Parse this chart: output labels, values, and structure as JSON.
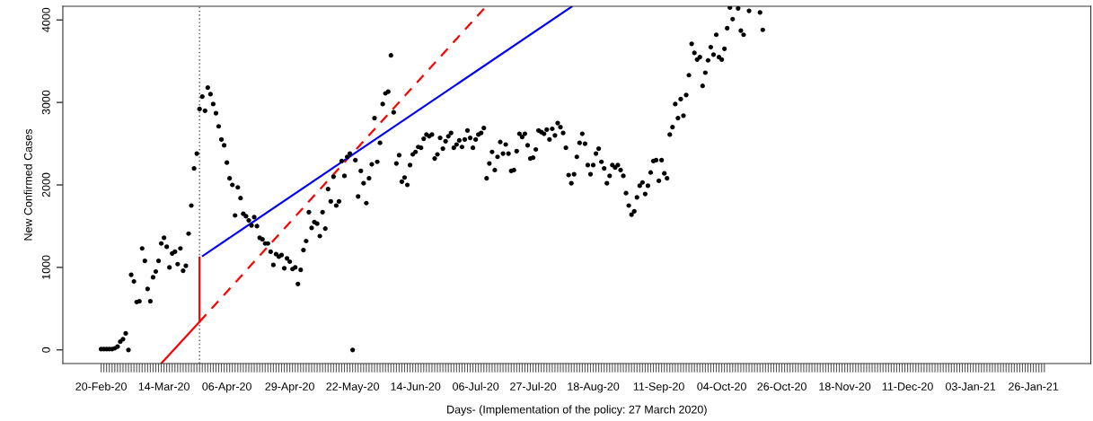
{
  "chart_data": {
    "type": "scatter",
    "xlabel": "Days- (Implementation of the policy: 27 March 2020)",
    "ylabel": "New Confirmed Cases",
    "xlim": [
      "2020-02-06",
      "2021-02-16"
    ],
    "ylim": [
      -165,
      4165
    ],
    "yticks": [
      0,
      1000,
      2000,
      3000,
      4000
    ],
    "xticks": [
      {
        "value": "2020-02-20",
        "label": "20-Feb-20"
      },
      {
        "value": "2020-02-21",
        "label": null
      },
      {
        "value": "2020-02-22",
        "label": null
      },
      {
        "value": "2020-02-23",
        "label": null
      },
      {
        "value": "2020-02-24",
        "label": null
      },
      {
        "value": "2020-02-25",
        "label": null
      },
      {
        "value": "2020-02-26",
        "label": null
      },
      {
        "value": "2020-02-27",
        "label": null
      },
      {
        "value": "2020-02-28",
        "label": null
      },
      {
        "value": "2020-02-29",
        "label": null
      },
      {
        "value": "2020-03-01",
        "label": null
      },
      {
        "value": "2020-03-02",
        "label": null
      },
      {
        "value": "2020-03-03",
        "label": null
      },
      {
        "value": "2020-03-04",
        "label": null
      },
      {
        "value": "2020-03-05",
        "label": null
      },
      {
        "value": "2020-03-06",
        "label": null
      },
      {
        "value": "2020-03-07",
        "label": null
      },
      {
        "value": "2020-03-08",
        "label": null
      },
      {
        "value": "2020-03-09",
        "label": null
      },
      {
        "value": "2020-03-10",
        "label": null
      },
      {
        "value": "2020-03-11",
        "label": null
      },
      {
        "value": "2020-03-12",
        "label": null
      },
      {
        "value": "2020-03-13",
        "label": null
      },
      {
        "value": "2020-03-14",
        "label": "14-Mar-20"
      },
      {
        "value": "2020-03-15",
        "label": null
      },
      {
        "value": "2020-03-16",
        "label": null
      },
      {
        "value": "2020-03-17",
        "label": null
      },
      {
        "value": "2020-03-18",
        "label": null
      },
      {
        "value": "2020-03-19",
        "label": null
      },
      {
        "value": "2020-03-20",
        "label": null
      },
      {
        "value": "2020-03-21",
        "label": null
      },
      {
        "value": "2020-03-22",
        "label": null
      },
      {
        "value": "2020-03-23",
        "label": null
      },
      {
        "value": "2020-03-24",
        "label": null
      },
      {
        "value": "2020-03-25",
        "label": null
      },
      {
        "value": "2020-03-26",
        "label": null
      },
      {
        "value": "2020-03-27",
        "label": null
      },
      {
        "value": "2020-03-28",
        "label": null
      },
      {
        "value": "2020-03-29",
        "label": null
      },
      {
        "value": "2020-03-30",
        "label": null
      },
      {
        "value": "2020-03-31",
        "label": null
      },
      {
        "value": "2020-04-01",
        "label": null
      },
      {
        "value": "2020-04-02",
        "label": null
      },
      {
        "value": "2020-04-03",
        "label": null
      },
      {
        "value": "2020-04-04",
        "label": null
      },
      {
        "value": "2020-04-05",
        "label": null
      },
      {
        "value": "2020-04-06",
        "label": "06-Apr-20"
      },
      {
        "value": "2020-04-07",
        "label": null
      },
      {
        "value": "2020-04-08",
        "label": null
      },
      {
        "value": "2020-04-09",
        "label": null
      },
      {
        "value": "2020-04-10",
        "label": null
      },
      {
        "value": "2020-04-11",
        "label": null
      },
      {
        "value": "2020-04-12",
        "label": null
      },
      {
        "value": "2020-04-13",
        "label": null
      },
      {
        "value": "2020-04-14",
        "label": null
      },
      {
        "value": "2020-04-15",
        "label": null
      },
      {
        "value": "2020-04-16",
        "label": null
      },
      {
        "value": "2020-04-17",
        "label": null
      },
      {
        "value": "2020-04-18",
        "label": null
      },
      {
        "value": "2020-04-19",
        "label": null
      },
      {
        "value": "2020-04-20",
        "label": null
      },
      {
        "value": "2020-04-21",
        "label": null
      },
      {
        "value": "2020-04-22",
        "label": null
      },
      {
        "value": "2020-04-23",
        "label": null
      },
      {
        "value": "2020-04-24",
        "label": null
      },
      {
        "value": "2020-04-25",
        "label": null
      },
      {
        "value": "2020-04-26",
        "label": null
      },
      {
        "value": "2020-04-27",
        "label": null
      },
      {
        "value": "2020-04-28",
        "label": null
      },
      {
        "value": "2020-04-29",
        "label": "29-Apr-20"
      },
      {
        "value": "2020-04-30",
        "label": null
      },
      {
        "value": "2020-05-01",
        "label": null
      },
      {
        "value": "2020-05-02",
        "label": null
      },
      {
        "value": "2020-05-03",
        "label": null
      },
      {
        "value": "2020-05-04",
        "label": null
      },
      {
        "value": "2020-05-05",
        "label": null
      },
      {
        "value": "2020-05-06",
        "label": null
      },
      {
        "value": "2020-05-07",
        "label": null
      },
      {
        "value": "2020-05-08",
        "label": null
      },
      {
        "value": "2020-05-09",
        "label": null
      },
      {
        "value": "2020-05-10",
        "label": null
      },
      {
        "value": "2020-05-11",
        "label": null
      },
      {
        "value": "2020-05-12",
        "label": null
      },
      {
        "value": "2020-05-13",
        "label": null
      },
      {
        "value": "2020-05-14",
        "label": null
      },
      {
        "value": "2020-05-15",
        "label": null
      },
      {
        "value": "2020-05-16",
        "label": null
      },
      {
        "value": "2020-05-17",
        "label": null
      },
      {
        "value": "2020-05-18",
        "label": null
      },
      {
        "value": "2020-05-19",
        "label": null
      },
      {
        "value": "2020-05-20",
        "label": null
      },
      {
        "value": "2020-05-21",
        "label": null
      },
      {
        "value": "2020-05-22",
        "label": "22-May-20"
      },
      {
        "value": "2020-05-23",
        "label": null
      },
      {
        "value": "2020-05-24",
        "label": null
      },
      {
        "value": "2020-05-25",
        "label": null
      },
      {
        "value": "2020-05-26",
        "label": null
      },
      {
        "value": "2020-05-27",
        "label": null
      },
      {
        "value": "2020-05-28",
        "label": null
      },
      {
        "value": "2020-05-29",
        "label": null
      },
      {
        "value": "2020-05-30",
        "label": null
      },
      {
        "value": "2020-05-31",
        "label": null
      },
      {
        "value": "2020-06-01",
        "label": null
      },
      {
        "value": "2020-06-02",
        "label": null
      },
      {
        "value": "2020-06-03",
        "label": null
      },
      {
        "value": "2020-06-04",
        "label": null
      },
      {
        "value": "2020-06-05",
        "label": null
      },
      {
        "value": "2020-06-06",
        "label": null
      },
      {
        "value": "2020-06-07",
        "label": null
      },
      {
        "value": "2020-06-08",
        "label": null
      },
      {
        "value": "2020-06-09",
        "label": null
      },
      {
        "value": "2020-06-10",
        "label": null
      },
      {
        "value": "2020-06-11",
        "label": null
      },
      {
        "value": "2020-06-12",
        "label": null
      },
      {
        "value": "2020-06-13",
        "label": null
      },
      {
        "value": "2020-06-14",
        "label": "14-Jun-20"
      },
      {
        "value": "2020-06-15",
        "label": null
      },
      {
        "value": "2020-06-16",
        "label": null
      },
      {
        "value": "2020-06-17",
        "label": null
      },
      {
        "value": "2020-06-18",
        "label": null
      },
      {
        "value": "2020-06-19",
        "label": null
      },
      {
        "value": "2020-06-20",
        "label": null
      },
      {
        "value": "2020-06-21",
        "label": null
      },
      {
        "value": "2020-06-22",
        "label": null
      },
      {
        "value": "2020-06-23",
        "label": null
      },
      {
        "value": "2020-06-24",
        "label": null
      },
      {
        "value": "2020-06-25",
        "label": null
      },
      {
        "value": "2020-06-26",
        "label": null
      },
      {
        "value": "2020-06-27",
        "label": null
      },
      {
        "value": "2020-06-28",
        "label": null
      },
      {
        "value": "2020-06-29",
        "label": null
      },
      {
        "value": "2020-06-30",
        "label": null
      },
      {
        "value": "2020-07-01",
        "label": null
      },
      {
        "value": "2020-07-02",
        "label": null
      },
      {
        "value": "2020-07-03",
        "label": null
      },
      {
        "value": "2020-07-04",
        "label": null
      },
      {
        "value": "2020-07-05",
        "label": null
      },
      {
        "value": "2020-07-06",
        "label": "06-Jul-20"
      },
      {
        "value": "2020-07-07",
        "label": null
      },
      {
        "value": "2020-07-08",
        "label": null
      },
      {
        "value": "2020-07-09",
        "label": null
      },
      {
        "value": "2020-07-10",
        "label": null
      },
      {
        "value": "2020-07-11",
        "label": null
      },
      {
        "value": "2020-07-12",
        "label": null
      },
      {
        "value": "2020-07-13",
        "label": null
      },
      {
        "value": "2020-07-14",
        "label": null
      },
      {
        "value": "2020-07-15",
        "label": null
      },
      {
        "value": "2020-07-16",
        "label": null
      },
      {
        "value": "2020-07-17",
        "label": null
      },
      {
        "value": "2020-07-18",
        "label": null
      },
      {
        "value": "2020-07-19",
        "label": null
      },
      {
        "value": "2020-07-20",
        "label": null
      },
      {
        "value": "2020-07-21",
        "label": null
      },
      {
        "value": "2020-07-22",
        "label": null
      },
      {
        "value": "2020-07-23",
        "label": null
      },
      {
        "value": "2020-07-24",
        "label": null
      },
      {
        "value": "2020-07-25",
        "label": null
      },
      {
        "value": "2020-07-26",
        "label": null
      },
      {
        "value": "2020-07-27",
        "label": "27-Jul-20"
      },
      {
        "value": "2020-07-28",
        "label": null
      },
      {
        "value": "2020-07-29",
        "label": null
      },
      {
        "value": "2020-07-30",
        "label": null
      },
      {
        "value": "2020-07-31",
        "label": null
      },
      {
        "value": "2020-08-01",
        "label": null
      },
      {
        "value": "2020-08-02",
        "label": null
      },
      {
        "value": "2020-08-03",
        "label": null
      },
      {
        "value": "2020-08-04",
        "label": null
      },
      {
        "value": "2020-08-05",
        "label": null
      },
      {
        "value": "2020-08-06",
        "label": null
      },
      {
        "value": "2020-08-07",
        "label": null
      },
      {
        "value": "2020-08-08",
        "label": null
      },
      {
        "value": "2020-08-09",
        "label": null
      },
      {
        "value": "2020-08-10",
        "label": null
      },
      {
        "value": "2020-08-11",
        "label": null
      },
      {
        "value": "2020-08-12",
        "label": null
      },
      {
        "value": "2020-08-13",
        "label": null
      },
      {
        "value": "2020-08-14",
        "label": null
      },
      {
        "value": "2020-08-15",
        "label": null
      },
      {
        "value": "2020-08-16",
        "label": null
      },
      {
        "value": "2020-08-17",
        "label": null
      },
      {
        "value": "2020-08-18",
        "label": "18-Aug-20"
      },
      {
        "value": "2020-08-19",
        "label": null
      },
      {
        "value": "2020-08-20",
        "label": null
      },
      {
        "value": "2020-08-21",
        "label": null
      },
      {
        "value": "2020-08-22",
        "label": null
      },
      {
        "value": "2020-08-23",
        "label": null
      },
      {
        "value": "2020-08-24",
        "label": null
      },
      {
        "value": "2020-08-25",
        "label": null
      },
      {
        "value": "2020-08-26",
        "label": null
      },
      {
        "value": "2020-08-27",
        "label": null
      },
      {
        "value": "2020-08-28",
        "label": null
      },
      {
        "value": "2020-08-29",
        "label": null
      },
      {
        "value": "2020-08-30",
        "label": null
      },
      {
        "value": "2020-08-31",
        "label": null
      },
      {
        "value": "2020-09-01",
        "label": null
      },
      {
        "value": "2020-09-02",
        "label": null
      },
      {
        "value": "2020-09-03",
        "label": null
      },
      {
        "value": "2020-09-04",
        "label": null
      },
      {
        "value": "2020-09-05",
        "label": null
      },
      {
        "value": "2020-09-06",
        "label": null
      },
      {
        "value": "2020-09-07",
        "label": null
      },
      {
        "value": "2020-09-08",
        "label": null
      },
      {
        "value": "2020-09-09",
        "label": null
      },
      {
        "value": "2020-09-10",
        "label": null
      },
      {
        "value": "2020-09-11",
        "label": "11-Sep-20"
      },
      {
        "value": "2020-09-12",
        "label": null
      },
      {
        "value": "2020-09-13",
        "label": null
      },
      {
        "value": "2020-09-14",
        "label": null
      },
      {
        "value": "2020-09-15",
        "label": null
      },
      {
        "value": "2020-09-16",
        "label": null
      },
      {
        "value": "2020-09-17",
        "label": null
      },
      {
        "value": "2020-09-18",
        "label": null
      },
      {
        "value": "2020-09-19",
        "label": null
      },
      {
        "value": "2020-09-20",
        "label": null
      },
      {
        "value": "2020-09-21",
        "label": null
      },
      {
        "value": "2020-09-22",
        "label": null
      },
      {
        "value": "2020-09-23",
        "label": null
      },
      {
        "value": "2020-09-24",
        "label": null
      },
      {
        "value": "2020-09-25",
        "label": null
      },
      {
        "value": "2020-09-26",
        "label": null
      },
      {
        "value": "2020-09-27",
        "label": null
      },
      {
        "value": "2020-09-28",
        "label": null
      },
      {
        "value": "2020-09-29",
        "label": null
      },
      {
        "value": "2020-09-30",
        "label": null
      },
      {
        "value": "2020-10-01",
        "label": null
      },
      {
        "value": "2020-10-02",
        "label": null
      },
      {
        "value": "2020-10-03",
        "label": null
      },
      {
        "value": "2020-10-04",
        "label": "04-Oct-20"
      },
      {
        "value": "2020-10-05",
        "label": null
      },
      {
        "value": "2020-10-06",
        "label": null
      },
      {
        "value": "2020-10-07",
        "label": null
      },
      {
        "value": "2020-10-08",
        "label": null
      },
      {
        "value": "2020-10-09",
        "label": null
      },
      {
        "value": "2020-10-10",
        "label": null
      },
      {
        "value": "2020-10-11",
        "label": null
      },
      {
        "value": "2020-10-12",
        "label": null
      },
      {
        "value": "2020-10-13",
        "label": null
      },
      {
        "value": "2020-10-14",
        "label": null
      },
      {
        "value": "2020-10-15",
        "label": null
      },
      {
        "value": "2020-10-16",
        "label": null
      },
      {
        "value": "2020-10-17",
        "label": null
      },
      {
        "value": "2020-10-18",
        "label": null
      },
      {
        "value": "2020-10-19",
        "label": null
      },
      {
        "value": "2020-10-20",
        "label": null
      },
      {
        "value": "2020-10-21",
        "label": null
      },
      {
        "value": "2020-10-22",
        "label": null
      },
      {
        "value": "2020-10-23",
        "label": null
      },
      {
        "value": "2020-10-24",
        "label": null
      },
      {
        "value": "2020-10-25",
        "label": null
      },
      {
        "value": "2020-10-26",
        "label": "26-Oct-20"
      },
      {
        "value": "2020-10-27",
        "label": null
      },
      {
        "value": "2020-10-28",
        "label": null
      },
      {
        "value": "2020-10-29",
        "label": null
      },
      {
        "value": "2020-10-30",
        "label": null
      },
      {
        "value": "2020-10-31",
        "label": null
      },
      {
        "value": "2020-11-01",
        "label": null
      },
      {
        "value": "2020-11-02",
        "label": null
      },
      {
        "value": "2020-11-03",
        "label": null
      },
      {
        "value": "2020-11-04",
        "label": null
      },
      {
        "value": "2020-11-05",
        "label": null
      },
      {
        "value": "2020-11-06",
        "label": null
      },
      {
        "value": "2020-11-07",
        "label": null
      },
      {
        "value": "2020-11-08",
        "label": null
      },
      {
        "value": "2020-11-09",
        "label": null
      },
      {
        "value": "2020-11-10",
        "label": null
      },
      {
        "value": "2020-11-11",
        "label": null
      },
      {
        "value": "2020-11-12",
        "label": null
      },
      {
        "value": "2020-11-13",
        "label": null
      },
      {
        "value": "2020-11-14",
        "label": null
      },
      {
        "value": "2020-11-15",
        "label": null
      },
      {
        "value": "2020-11-16",
        "label": null
      },
      {
        "value": "2020-11-17",
        "label": null
      },
      {
        "value": "2020-11-18",
        "label": "18-Nov-20"
      },
      {
        "value": "2020-11-19",
        "label": null
      },
      {
        "value": "2020-11-20",
        "label": null
      },
      {
        "value": "2020-11-21",
        "label": null
      },
      {
        "value": "2020-11-22",
        "label": null
      },
      {
        "value": "2020-11-23",
        "label": null
      },
      {
        "value": "2020-11-24",
        "label": null
      },
      {
        "value": "2020-11-25",
        "label": null
      },
      {
        "value": "2020-11-26",
        "label": null
      },
      {
        "value": "2020-11-27",
        "label": null
      },
      {
        "value": "2020-11-28",
        "label": null
      },
      {
        "value": "2020-11-29",
        "label": null
      },
      {
        "value": "2020-11-30",
        "label": null
      },
      {
        "value": "2020-12-01",
        "label": null
      },
      {
        "value": "2020-12-02",
        "label": null
      },
      {
        "value": "2020-12-03",
        "label": null
      },
      {
        "value": "2020-12-04",
        "label": null
      },
      {
        "value": "2020-12-05",
        "label": null
      },
      {
        "value": "2020-12-06",
        "label": null
      },
      {
        "value": "2020-12-07",
        "label": null
      },
      {
        "value": "2020-12-08",
        "label": null
      },
      {
        "value": "2020-12-09",
        "label": null
      },
      {
        "value": "2020-12-10",
        "label": null
      },
      {
        "value": "2020-12-11",
        "label": "11-Dec-20"
      },
      {
        "value": "2020-12-12",
        "label": null
      },
      {
        "value": "2020-12-13",
        "label": null
      },
      {
        "value": "2020-12-14",
        "label": null
      },
      {
        "value": "2020-12-15",
        "label": null
      },
      {
        "value": "2020-12-16",
        "label": null
      },
      {
        "value": "2020-12-17",
        "label": null
      },
      {
        "value": "2020-12-18",
        "label": null
      },
      {
        "value": "2020-12-19",
        "label": null
      },
      {
        "value": "2020-12-20",
        "label": null
      },
      {
        "value": "2020-12-21",
        "label": null
      },
      {
        "value": "2020-12-22",
        "label": null
      },
      {
        "value": "2020-12-23",
        "label": null
      },
      {
        "value": "2020-12-24",
        "label": null
      },
      {
        "value": "2020-12-25",
        "label": null
      },
      {
        "value": "2020-12-26",
        "label": null
      },
      {
        "value": "2020-12-27",
        "label": null
      },
      {
        "value": "2020-12-28",
        "label": null
      },
      {
        "value": "2020-12-29",
        "label": null
      },
      {
        "value": "2020-12-30",
        "label": null
      },
      {
        "value": "2020-12-31",
        "label": null
      },
      {
        "value": "2021-01-01",
        "label": null
      },
      {
        "value": "2021-01-02",
        "label": null
      },
      {
        "value": "2021-01-03",
        "label": "03-Jan-21"
      },
      {
        "value": "2021-01-04",
        "label": null
      },
      {
        "value": "2021-01-05",
        "label": null
      },
      {
        "value": "2021-01-06",
        "label": null
      },
      {
        "value": "2021-01-07",
        "label": null
      },
      {
        "value": "2021-01-08",
        "label": null
      },
      {
        "value": "2021-01-09",
        "label": null
      },
      {
        "value": "2021-01-10",
        "label": null
      },
      {
        "value": "2021-01-11",
        "label": null
      },
      {
        "value": "2021-01-12",
        "label": null
      },
      {
        "value": "2021-01-13",
        "label": null
      },
      {
        "value": "2021-01-14",
        "label": null
      },
      {
        "value": "2021-01-15",
        "label": null
      },
      {
        "value": "2021-01-16",
        "label": null
      },
      {
        "value": "2021-01-17",
        "label": null
      },
      {
        "value": "2021-01-18",
        "label": null
      },
      {
        "value": "2021-01-19",
        "label": null
      },
      {
        "value": "2021-01-20",
        "label": null
      },
      {
        "value": "2021-01-21",
        "label": null
      },
      {
        "value": "2021-01-22",
        "label": null
      },
      {
        "value": "2021-01-23",
        "label": null
      },
      {
        "value": "2021-01-24",
        "label": null
      },
      {
        "value": "2021-01-25",
        "label": null
      },
      {
        "value": "2021-01-26",
        "label": "26-Jan-21"
      },
      {
        "value": "2021-01-27",
        "label": null
      },
      {
        "value": "2021-01-28",
        "label": null
      },
      {
        "value": "2021-01-29",
        "label": null
      },
      {
        "value": "2021-01-30",
        "label": null
      }
    ],
    "x": [
      "2020-02-20",
      "2020-02-21",
      "2020-02-22",
      "2020-02-23",
      "2020-02-24",
      "2020-02-25",
      "2020-02-26",
      "2020-02-27",
      "2020-02-28",
      "2020-02-29",
      "2020-03-01",
      "2020-03-02",
      "2020-03-03",
      "2020-03-04",
      "2020-03-05",
      "2020-03-06",
      "2020-03-07",
      "2020-03-08",
      "2020-03-09",
      "2020-03-10",
      "2020-03-11",
      "2020-03-12",
      "2020-03-13",
      "2020-03-14",
      "2020-03-15",
      "2020-03-16",
      "2020-03-17",
      "2020-03-18",
      "2020-03-19",
      "2020-03-20",
      "2020-03-21",
      "2020-03-22",
      "2020-03-23",
      "2020-03-24",
      "2020-03-25",
      "2020-03-26",
      "2020-03-27",
      "2020-03-28",
      "2020-03-29",
      "2020-03-30",
      "2020-03-31",
      "2020-04-01",
      "2020-04-02",
      "2020-04-03",
      "2020-04-04",
      "2020-04-05",
      "2020-04-06",
      "2020-04-07",
      "2020-04-08",
      "2020-04-09",
      "2020-04-10",
      "2020-04-11",
      "2020-04-12",
      "2020-04-13",
      "2020-04-14",
      "2020-04-15",
      "2020-04-16",
      "2020-04-17",
      "2020-04-18",
      "2020-04-19",
      "2020-04-20",
      "2020-04-21",
      "2020-04-22",
      "2020-04-23",
      "2020-04-24",
      "2020-04-25",
      "2020-04-26",
      "2020-04-27",
      "2020-04-28",
      "2020-04-29",
      "2020-04-30",
      "2020-05-01",
      "2020-05-02",
      "2020-05-03",
      "2020-05-04",
      "2020-05-05",
      "2020-05-06",
      "2020-05-07",
      "2020-05-08",
      "2020-05-09",
      "2020-05-10",
      "2020-05-11",
      "2020-05-12",
      "2020-05-13",
      "2020-05-14",
      "2020-05-15",
      "2020-05-16",
      "2020-05-17",
      "2020-05-18",
      "2020-05-19",
      "2020-05-20",
      "2020-05-21",
      "2020-05-22",
      "2020-05-23",
      "2020-05-24",
      "2020-05-25",
      "2020-05-26",
      "2020-05-27",
      "2020-05-28",
      "2020-05-29",
      "2020-05-30",
      "2020-05-31",
      "2020-06-01",
      "2020-06-02",
      "2020-06-03",
      "2020-06-04",
      "2020-06-05",
      "2020-06-06",
      "2020-06-07",
      "2020-06-08",
      "2020-06-09",
      "2020-06-10",
      "2020-06-11",
      "2020-06-12",
      "2020-06-13",
      "2020-06-14",
      "2020-06-15",
      "2020-06-16",
      "2020-06-17",
      "2020-06-18",
      "2020-06-19",
      "2020-06-20",
      "2020-06-21",
      "2020-06-22",
      "2020-06-23",
      "2020-06-24",
      "2020-06-25",
      "2020-06-26",
      "2020-06-27",
      "2020-06-28",
      "2020-06-29",
      "2020-06-30",
      "2020-07-01",
      "2020-07-02",
      "2020-07-03",
      "2020-07-04",
      "2020-07-05",
      "2020-07-06",
      "2020-07-07",
      "2020-07-08",
      "2020-07-09",
      "2020-07-10",
      "2020-07-11",
      "2020-07-12",
      "2020-07-13",
      "2020-07-14",
      "2020-07-15",
      "2020-07-16",
      "2020-07-17",
      "2020-07-18",
      "2020-07-19",
      "2020-07-20",
      "2020-07-21",
      "2020-07-22",
      "2020-07-23",
      "2020-07-24",
      "2020-07-25",
      "2020-07-26",
      "2020-07-27",
      "2020-07-28",
      "2020-07-29",
      "2020-07-30",
      "2020-07-31",
      "2020-08-01",
      "2020-08-02",
      "2020-08-03",
      "2020-08-04",
      "2020-08-05",
      "2020-08-06",
      "2020-08-07",
      "2020-08-08",
      "2020-08-09",
      "2020-08-10",
      "2020-08-11",
      "2020-08-12",
      "2020-08-13",
      "2020-08-14",
      "2020-08-15",
      "2020-08-16",
      "2020-08-17",
      "2020-08-18",
      "2020-08-19",
      "2020-08-20",
      "2020-08-21",
      "2020-08-22",
      "2020-08-23",
      "2020-08-24",
      "2020-08-25",
      "2020-08-26",
      "2020-08-27",
      "2020-08-28",
      "2020-08-29",
      "2020-08-30",
      "2020-08-31",
      "2020-09-01",
      "2020-09-02",
      "2020-09-03",
      "2020-09-04",
      "2020-09-05",
      "2020-09-06",
      "2020-09-07",
      "2020-09-08",
      "2020-09-09",
      "2020-09-10",
      "2020-09-11",
      "2020-09-12",
      "2020-09-13",
      "2020-09-14",
      "2020-09-15",
      "2020-09-16",
      "2020-09-17",
      "2020-09-18",
      "2020-09-19",
      "2020-09-20",
      "2020-09-21",
      "2020-09-22",
      "2020-09-23",
      "2020-09-24",
      "2020-09-25",
      "2020-09-26",
      "2020-09-27",
      "2020-09-28",
      "2020-09-29",
      "2020-09-30",
      "2020-10-01",
      "2020-10-02",
      "2020-10-03",
      "2020-10-04",
      "2020-10-05",
      "2020-10-06",
      "2020-10-07",
      "2020-10-08",
      "2020-10-09",
      "2020-10-10",
      "2020-10-11",
      "2020-10-12",
      "2020-10-13",
      "2020-10-14",
      "2020-10-15",
      "2020-10-16",
      "2020-10-17",
      "2020-10-18",
      "2020-10-19"
    ],
    "series": [
      {
        "marker": "circle",
        "color": "#000000",
        "values": [
          10,
          10,
          10,
          10,
          10,
          20,
          40,
          100,
          130,
          200,
          0,
          910,
          830,
          580,
          590,
          1230,
          1080,
          740,
          590,
          880,
          950,
          1080,
          1290,
          1360,
          1250,
          1000,
          1170,
          1190,
          1040,
          1230,
          960,
          1020,
          1410,
          1750,
          2200,
          2380,
          2920,
          3070,
          2900,
          3180,
          3100,
          2980,
          2870,
          2710,
          2550,
          2480,
          2270,
          2080,
          2000,
          1630,
          1970,
          1840,
          1650,
          1620,
          1570,
          1510,
          1610,
          1500,
          1360,
          1340,
          1290,
          1290,
          1190,
          1030,
          1160,
          1130,
          1150,
          990,
          1110,
          1070,
          980,
          1000,
          800,
          970,
          1210,
          1320,
          1670,
          1480,
          1550,
          1530,
          1380,
          1670,
          1470,
          1950,
          1800,
          2100,
          1750,
          1800,
          2290,
          2110,
          2340,
          2380,
          0,
          2300,
          1860,
          2170,
          2020,
          1780,
          2080,
          2250,
          2810,
          2280,
          2510,
          2980,
          3110,
          3130,
          3570,
          2880,
          2260,
          2360,
          2040,
          2090,
          2000,
          2240,
          2370,
          2400,
          2460,
          2450,
          2560,
          2610,
          2590,
          2610,
          2320,
          2370,
          2570,
          2440,
          2530,
          2590,
          2630,
          2450,
          2490,
          2540,
          2460,
          2550,
          2660,
          2570,
          2450,
          2550,
          2610,
          2630,
          2690,
          2080,
          2260,
          2400,
          2180,
          2340,
          2520,
          2380,
          2490,
          2380,
          2170,
          2180,
          2410,
          2620,
          2580,
          2620,
          2480,
          2320,
          2330,
          2430,
          2660,
          2640,
          2620,
          2670,
          2550,
          2680,
          2600,
          2750,
          2700,
          2630,
          2450,
          2120,
          2020,
          2130,
          2340,
          2510,
          2620,
          2500,
          2240,
          2130,
          2240,
          2380,
          2440,
          2280,
          2200,
          2020,
          2110,
          2240,
          2210,
          2240,
          2180,
          2110,
          1900,
          1750,
          1640,
          1680,
          1850,
          1990,
          2030,
          1890,
          1990,
          2150,
          2290,
          2300,
          2050,
          2300,
          2140,
          2080,
          2610,
          2700,
          2980,
          2810,
          3040,
          2840,
          3090,
          3330,
          3710,
          3600,
          3520,
          3550,
          3200,
          3360,
          3510,
          3670,
          3580,
          3820,
          3550,
          3520,
          3650,
          3900,
          4150,
          4010,
          null,
          4140,
          3870,
          3820,
          null,
          4110,
          null,
          null,
          null,
          4090,
          3880
        ]
      },
      {
        "type": "line",
        "color": "#ff0000",
        "line_style": "solid",
        "x": [
          "2020-03-13T02:24",
          "2020-03-27",
          "2020-03-27"
        ],
        "values": [
          -160,
          340,
          1120
        ]
      },
      {
        "type": "line",
        "color": "#ff0000",
        "line_style": "dashed",
        "x": [
          "2020-03-27",
          "2020-07-09T16:48"
        ],
        "values": [
          340,
          4160
        ]
      },
      {
        "type": "line",
        "color": "#0000ff",
        "line_style": "solid",
        "x": [
          "2020-03-28T04:48",
          "2020-08-10T02:24"
        ],
        "values": [
          1140,
          4160
        ]
      }
    ],
    "ref_lines": [
      {
        "axis": "x",
        "value": "2020-03-27",
        "color": "#555555",
        "line_style": "dotted"
      }
    ]
  }
}
